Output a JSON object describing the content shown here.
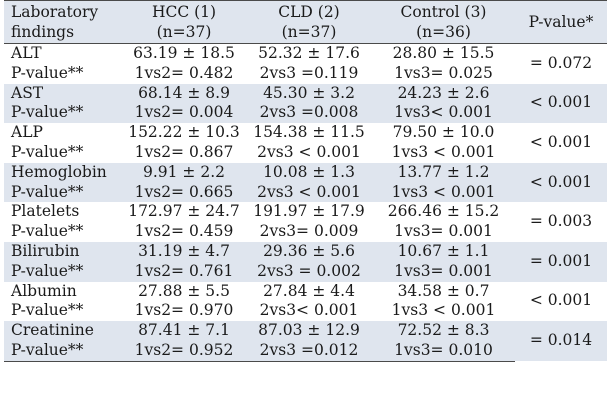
{
  "header": {
    "col1": [
      "Laboratory",
      "findings"
    ],
    "col2": [
      "HCC (1)",
      "(n=37)"
    ],
    "col3": [
      "CLD (2)",
      "(n=37)"
    ],
    "col4": [
      "Control (3)",
      "(n=36)"
    ],
    "col5": "P-value*"
  },
  "rows": [
    {
      "name": "ALT",
      "hcc": "63.19 ± 18.5",
      "cld": "52.32 ± 17.6",
      "control": "28.80 ± 15.5",
      "p_label": "P-value**",
      "p12": "1vs2= 0.482",
      "p23": "2vs3 =0.119",
      "p13": "1vs3= 0.025",
      "p_overall": "= 0.072"
    },
    {
      "name": "AST",
      "hcc": "68.14 ± 8.9",
      "cld": "45.30 ± 3.2",
      "control": "24.23 ± 2.6",
      "p_label": "P-value**",
      "p12": "1vs2= 0.004",
      "p23": "2vs3 =0.008",
      "p13": "1vs3< 0.001",
      "p_overall": "< 0.001"
    },
    {
      "name": "ALP",
      "hcc": "152.22 ± 10.3",
      "cld": "154.38 ± 11.5",
      "control": "79.50 ± 10.0",
      "p_label": "P-value**",
      "p12": "1vs2= 0.867",
      "p23": "2vs3 < 0.001",
      "p13": "1vs3 < 0.001",
      "p_overall": "< 0.001"
    },
    {
      "name": "Hemoglobin",
      "hcc": "9.91 ± 2.2",
      "cld": "10.08 ± 1.3",
      "control": "13.77 ± 1.2",
      "p_label": "P-value**",
      "p12": "1vs2= 0.665",
      "p23": "2vs3 < 0.001",
      "p13": "1vs3 < 0.001",
      "p_overall": "< 0.001"
    },
    {
      "name": "Platelets",
      "hcc": "172.97 ± 24.7",
      "cld": "191.97 ± 17.9",
      "control": "266.46 ± 15.2",
      "p_label": "P-value**",
      "p12": "1vs2= 0.459",
      "p23": "2vs3= 0.009",
      "p13": "1vs3= 0.001",
      "p_overall": "= 0.003"
    },
    {
      "name": "Bilirubin",
      "hcc": "31.19 ± 4.7",
      "cld": "29.36 ± 5.6",
      "control": "10.67 ± 1.1",
      "p_label": "P-value**",
      "p12": "1vs2= 0.761",
      "p23": "2vs3 = 0.002",
      "p13": "1vs3= 0.001",
      "p_overall": "= 0.001"
    },
    {
      "name": "Albumin",
      "hcc": "27.88 ± 5.5",
      "cld": "27.84 ± 4.4",
      "control": "34.58 ± 0.7",
      "p_label": "P-value**",
      "p12": "1vs2= 0.970",
      "p23": "2vs3< 0.001",
      "p13": "1vs3 < 0.001",
      "p_overall": "< 0.001"
    },
    {
      "name": "Creatinine",
      "hcc": "87.41 ± 7.1",
      "cld": "87.03 ± 12.9",
      "control": "72.52 ± 8.3",
      "p_label": "P-value**",
      "p12": "1vs2= 0.952",
      "p23": "2vs3 =0.012",
      "p13": "1vs3= 0.010",
      "p_overall": "= 0.014"
    }
  ],
  "colors": {
    "band": "#dfe5ee",
    "rule": "#4a4a4a",
    "text": "#1a1a1a"
  }
}
